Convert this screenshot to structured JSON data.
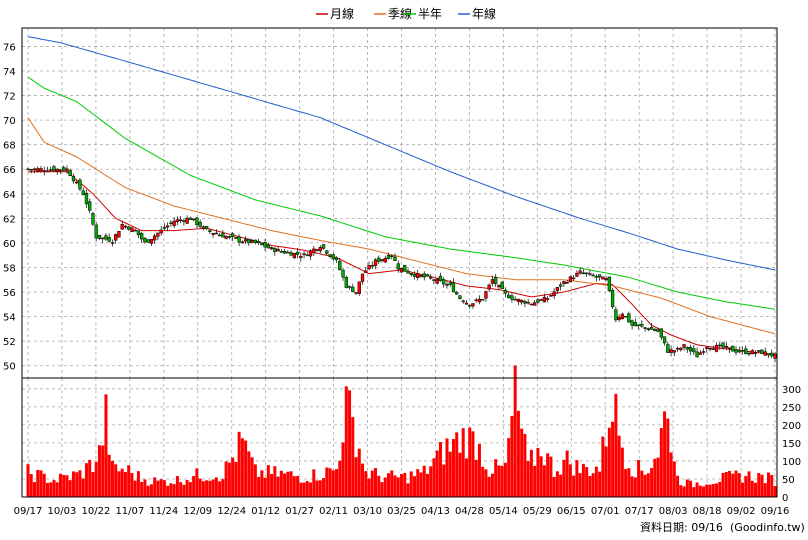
{
  "footer": {
    "label": "資料日期: 09/16",
    "source": "(Goodinfo.tw)"
  },
  "legend": [
    {
      "name": "月線",
      "color": "#cc0000"
    },
    {
      "name": "季線",
      "color": "#e07020"
    },
    {
      "name": "半年",
      "color": "#00cc00"
    },
    {
      "name": "年線",
      "color": "#2060cc"
    }
  ],
  "chart_data": [
    {
      "type": "candlestick",
      "price_ticks": [
        50,
        52,
        54,
        56,
        58,
        60,
        62,
        64,
        66,
        68,
        70,
        72,
        74,
        76
      ],
      "ylim": [
        49,
        77.5
      ],
      "up_color": "#ff0000",
      "down_color": "#00aa00",
      "date_labels": [
        "09/17",
        "10/03",
        "10/22",
        "11/07",
        "11/24",
        "12/09",
        "12/24",
        "01/12",
        "01/27",
        "02/11",
        "03/10",
        "03/25",
        "04/13",
        "04/28",
        "05/14",
        "05/29",
        "06/15",
        "07/01",
        "07/17",
        "08/03",
        "08/18",
        "09/02",
        "09/16"
      ],
      "close_keypoints": [
        [
          0,
          66.0
        ],
        [
          12,
          66.0
        ],
        [
          17,
          64.0
        ],
        [
          19,
          62.5
        ],
        [
          21,
          60.5
        ],
        [
          26,
          60.2
        ],
        [
          29,
          61.5
        ],
        [
          33,
          61.0
        ],
        [
          36,
          60.0
        ],
        [
          40,
          60.8
        ],
        [
          45,
          61.8
        ],
        [
          50,
          62.0
        ],
        [
          55,
          61.0
        ],
        [
          60,
          60.6
        ],
        [
          65,
          60.2
        ],
        [
          70,
          60.0
        ],
        [
          75,
          59.5
        ],
        [
          80,
          59.2
        ],
        [
          85,
          59.0
        ],
        [
          90,
          59.8
        ],
        [
          95,
          58.5
        ],
        [
          98,
          56.5
        ],
        [
          101,
          56.0
        ],
        [
          103,
          57.5
        ],
        [
          107,
          58.5
        ],
        [
          112,
          59.0
        ],
        [
          114,
          58.0
        ],
        [
          118,
          57.5
        ],
        [
          125,
          57.0
        ],
        [
          130,
          56.5
        ],
        [
          133,
          55.5
        ],
        [
          136,
          55.0
        ],
        [
          140,
          55.5
        ],
        [
          143,
          57.0
        ],
        [
          147,
          55.8
        ],
        [
          150,
          55.4
        ],
        [
          155,
          55.1
        ],
        [
          160,
          55.5
        ],
        [
          165,
          56.8
        ],
        [
          170,
          57.6
        ],
        [
          175,
          57.2
        ],
        [
          178,
          57.0
        ],
        [
          181,
          53.8
        ],
        [
          183,
          54.3
        ],
        [
          186,
          53.3
        ],
        [
          190,
          53.1
        ],
        [
          194,
          52.8
        ],
        [
          197,
          51.2
        ],
        [
          200,
          51.3
        ],
        [
          202,
          51.6
        ],
        [
          206,
          50.8
        ],
        [
          209,
          51.6
        ],
        [
          214,
          51.5
        ],
        [
          218,
          51.2
        ],
        [
          222,
          51.1
        ],
        [
          226,
          51.1
        ],
        [
          230,
          50.8
        ]
      ],
      "ma_lines": [
        {
          "name": "月線",
          "keypoints": [
            [
              0,
              65.8
            ],
            [
              12,
              65.8
            ],
            [
              20,
              64.0
            ],
            [
              27,
              62.0
            ],
            [
              35,
              61.0
            ],
            [
              45,
              61.0
            ],
            [
              55,
              61.2
            ],
            [
              65,
              60.5
            ],
            [
              75,
              59.8
            ],
            [
              85,
              59.4
            ],
            [
              95,
              58.8
            ],
            [
              105,
              57.5
            ],
            [
              115,
              57.8
            ],
            [
              125,
              57.2
            ],
            [
              135,
              56.5
            ],
            [
              145,
              56.2
            ],
            [
              155,
              55.6
            ],
            [
              165,
              56.0
            ],
            [
              175,
              56.7
            ],
            [
              180,
              56.6
            ],
            [
              186,
              55.0
            ],
            [
              192,
              53.3
            ],
            [
              198,
              52.5
            ],
            [
              206,
              51.7
            ],
            [
              214,
              51.4
            ],
            [
              230,
              50.9
            ]
          ]
        },
        {
          "name": "季線",
          "keypoints": [
            [
              0,
              70.2
            ],
            [
              5,
              68.2
            ],
            [
              15,
              67.0
            ],
            [
              30,
              64.5
            ],
            [
              45,
              63.0
            ],
            [
              60,
              62.0
            ],
            [
              75,
              61.0
            ],
            [
              90,
              60.2
            ],
            [
              105,
              59.5
            ],
            [
              120,
              58.5
            ],
            [
              135,
              57.5
            ],
            [
              150,
              57.0
            ],
            [
              165,
              57.0
            ],
            [
              180,
              56.5
            ],
            [
              195,
              55.5
            ],
            [
              210,
              54.0
            ],
            [
              230,
              52.6
            ]
          ]
        },
        {
          "name": "半年",
          "keypoints": [
            [
              0,
              73.5
            ],
            [
              5,
              72.6
            ],
            [
              15,
              71.5
            ],
            [
              30,
              68.5
            ],
            [
              50,
              65.5
            ],
            [
              70,
              63.5
            ],
            [
              90,
              62.2
            ],
            [
              110,
              60.5
            ],
            [
              130,
              59.5
            ],
            [
              150,
              58.8
            ],
            [
              165,
              58.2
            ],
            [
              185,
              57.2
            ],
            [
              200,
              56.0
            ],
            [
              215,
              55.2
            ],
            [
              230,
              54.6
            ]
          ]
        },
        {
          "name": "年線",
          "keypoints": [
            [
              0,
              76.8
            ],
            [
              10,
              76.3
            ],
            [
              30,
              74.8
            ],
            [
              60,
              72.5
            ],
            [
              90,
              70.2
            ],
            [
              110,
              68.0
            ],
            [
              130,
              65.8
            ],
            [
              150,
              63.8
            ],
            [
              170,
              62.0
            ],
            [
              185,
              60.8
            ],
            [
              200,
              59.5
            ],
            [
              215,
              58.6
            ],
            [
              230,
              57.8
            ]
          ]
        }
      ],
      "volume_ticks": [
        0,
        50,
        100,
        150,
        200,
        250,
        300
      ],
      "volume_ylim": [
        0,
        330
      ],
      "volume_color": "#ff0000",
      "volume_keypoints": [
        [
          0,
          80
        ],
        [
          8,
          55
        ],
        [
          16,
          75
        ],
        [
          20,
          110
        ],
        [
          22,
          140
        ],
        [
          24,
          260
        ],
        [
          26,
          90
        ],
        [
          30,
          90
        ],
        [
          35,
          60
        ],
        [
          40,
          50
        ],
        [
          46,
          55
        ],
        [
          52,
          70
        ],
        [
          60,
          75
        ],
        [
          66,
          180
        ],
        [
          70,
          80
        ],
        [
          78,
          75
        ],
        [
          85,
          65
        ],
        [
          90,
          75
        ],
        [
          95,
          90
        ],
        [
          98,
          300
        ],
        [
          101,
          200
        ],
        [
          104,
          80
        ],
        [
          110,
          65
        ],
        [
          116,
          65
        ],
        [
          122,
          80
        ],
        [
          128,
          150
        ],
        [
          134,
          195
        ],
        [
          138,
          180
        ],
        [
          142,
          90
        ],
        [
          147,
          95
        ],
        [
          150,
          330
        ],
        [
          154,
          100
        ],
        [
          158,
          160
        ],
        [
          162,
          90
        ],
        [
          166,
          120
        ],
        [
          170,
          90
        ],
        [
          176,
          95
        ],
        [
          180,
          325
        ],
        [
          182,
          210
        ],
        [
          184,
          140
        ],
        [
          186,
          100
        ],
        [
          190,
          80
        ],
        [
          194,
          150
        ],
        [
          196,
          260
        ],
        [
          198,
          200
        ],
        [
          200,
          60
        ],
        [
          204,
          40
        ],
        [
          208,
          50
        ],
        [
          214,
          60
        ],
        [
          220,
          70
        ],
        [
          226,
          65
        ],
        [
          230,
          55
        ]
      ]
    }
  ]
}
